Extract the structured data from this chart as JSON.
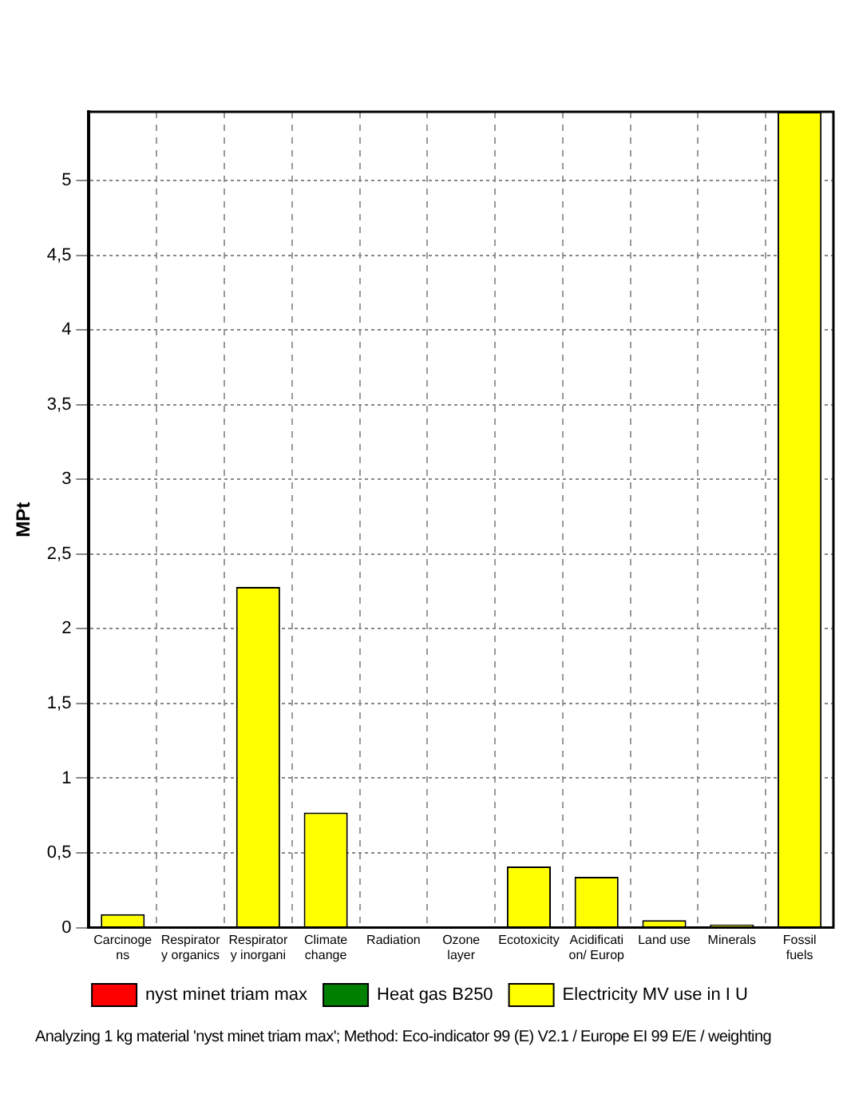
{
  "chart_data": {
    "type": "bar",
    "stacked": true,
    "ylabel": "MPt",
    "categories": [
      "Carcinoge\nns",
      "Respirator\ny organics",
      "Respirator\ny inorgani",
      "Climate\nchange",
      "Radiation",
      "Ozone\nlayer",
      "Ecotoxicity",
      "Acidificati\non/ Europ",
      "Land use",
      "Minerals",
      "Fossil\nfuels"
    ],
    "series": [
      {
        "name": "nyst minet triam max",
        "color": "#ff0000",
        "values": [
          0,
          0,
          0,
          0,
          0,
          0,
          0,
          0,
          0,
          0,
          0
        ]
      },
      {
        "name": "Heat gas B250",
        "color": "#008000",
        "values": [
          0,
          0,
          0,
          0,
          0,
          0,
          0,
          0,
          0,
          0,
          0
        ]
      },
      {
        "name": "Electricity MV use in I U",
        "color": "#ffff00",
        "values": [
          0.09,
          0,
          2.28,
          0.77,
          0,
          0,
          0.41,
          0.34,
          0.05,
          0.02,
          5.46
        ]
      }
    ],
    "ylim": [
      0,
      5.46
    ],
    "yticks": [
      0,
      {
        "value": 0.5,
        "label": "0,5"
      },
      1,
      {
        "value": 1.5,
        "label": "1,5"
      },
      2,
      {
        "value": 2.5,
        "label": "2,5"
      },
      3,
      {
        "value": 3.5,
        "label": "3,5"
      },
      4,
      {
        "value": 4.5,
        "label": "4,5"
      },
      5
    ],
    "grid": true,
    "legend": "bottom",
    "annotations": [
      "Analyzing 1 kg material 'nyst minet triam max';  Method: Eco-indicator 99 (E) V2.1 / Europe EI 99 E/E / weighting"
    ]
  }
}
